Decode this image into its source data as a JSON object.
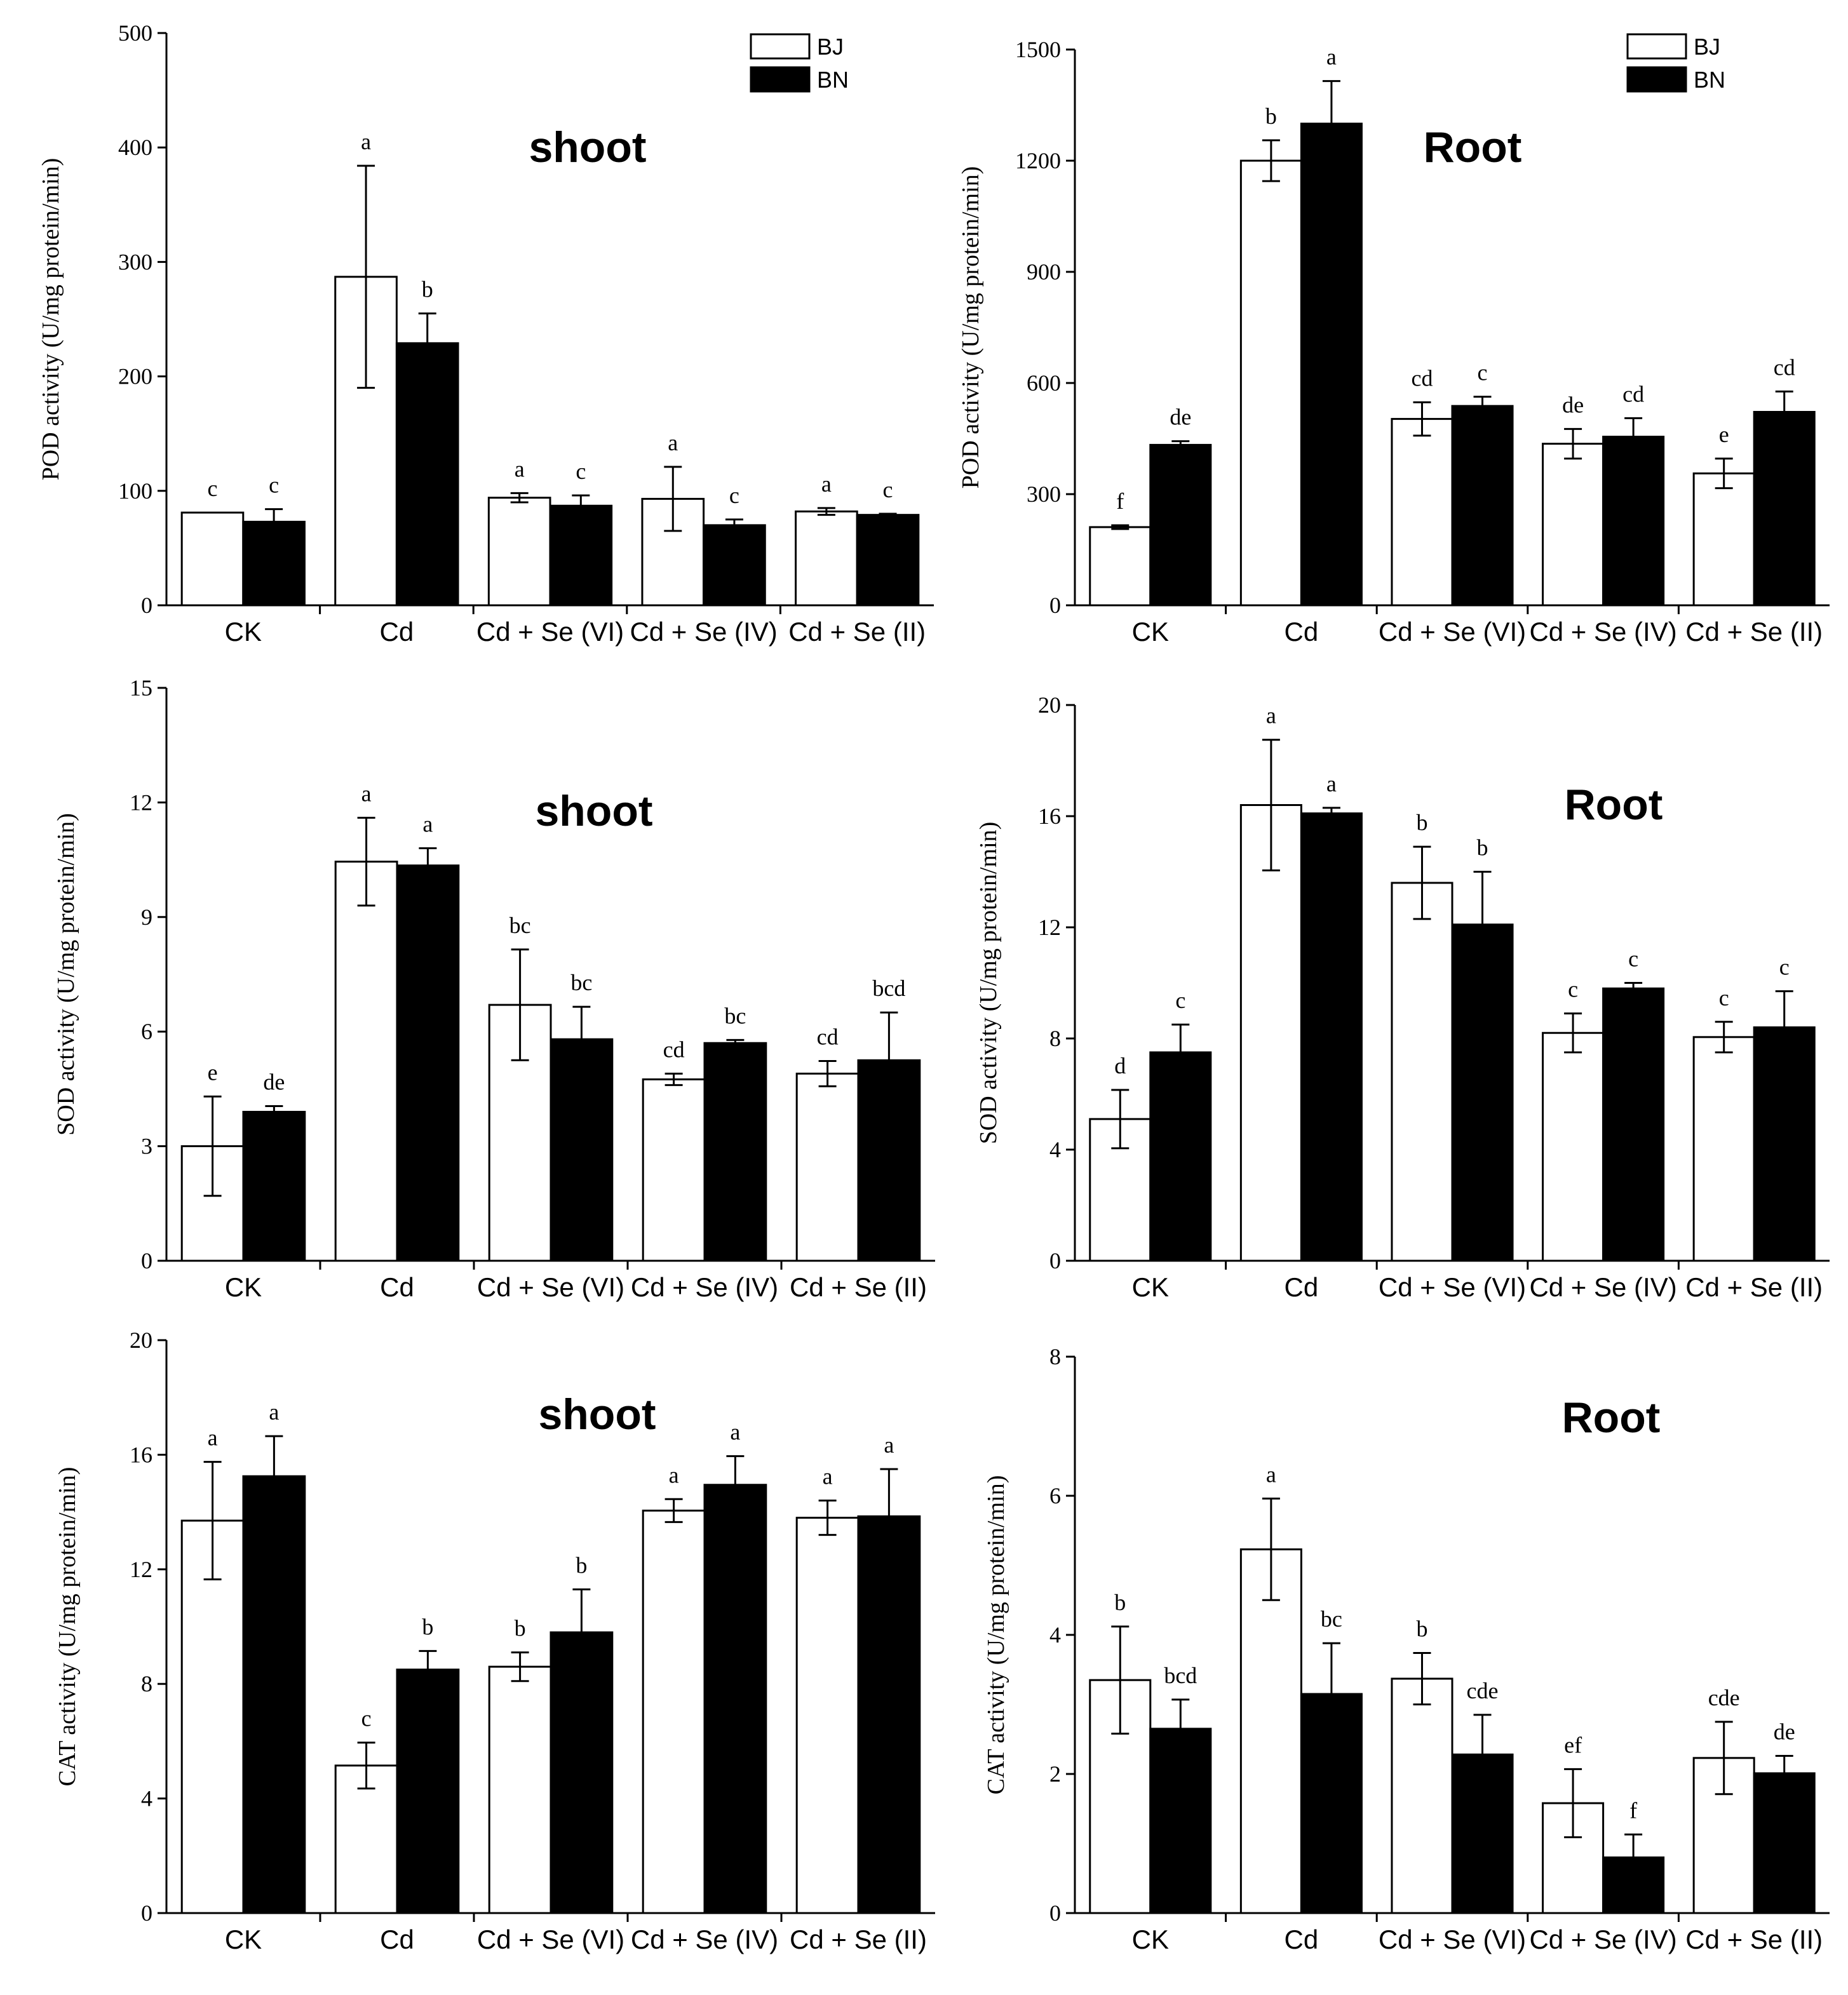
{
  "chart_data": [
    {
      "type": "bar",
      "title": "shoot",
      "ylabel": "POD activity (U/mg protein/min)",
      "ylim": [
        0,
        500
      ],
      "yticks": [
        0,
        100,
        200,
        300,
        400,
        500
      ],
      "categories": [
        "CK",
        "Cd",
        "Cd + Se (VI)",
        "Cd + Se (IV)",
        "Cd + Se (II)"
      ],
      "legend": {
        "position": "top-right",
        "entries": [
          "BJ",
          "BN"
        ]
      },
      "series": [
        {
          "name": "BJ",
          "color": "#ffffff",
          "values": [
            81,
            287,
            94,
            93,
            82
          ],
          "errors": [
            0,
            97,
            4,
            28,
            3
          ],
          "labels": [
            "c",
            "a",
            "a",
            "a",
            "a"
          ]
        },
        {
          "name": "BN",
          "color": "#000000",
          "values": [
            73,
            229,
            87,
            70,
            79
          ],
          "errors": [
            11,
            26,
            9,
            5,
            1
          ],
          "labels": [
            "c",
            "b",
            "c",
            "c",
            "c"
          ]
        }
      ]
    },
    {
      "type": "bar",
      "title": "Root",
      "ylabel": "POD activity (U/mg protein/min)",
      "ylim": [
        0,
        1500
      ],
      "yticks": [
        0,
        300,
        600,
        900,
        1200,
        1500
      ],
      "categories": [
        "CK",
        "Cd",
        "Cd + Se (VI)",
        "Cd + Se (IV)",
        "Cd + Se (II)"
      ],
      "legend": {
        "position": "top-right",
        "entries": [
          "BJ",
          "BN"
        ]
      },
      "series": [
        {
          "name": "BJ",
          "color": "#ffffff",
          "values": [
            211,
            1200,
            503,
            436,
            356
          ],
          "errors": [
            5,
            55,
            45,
            40,
            40
          ],
          "labels": [
            "f",
            "b",
            "cd",
            "de",
            "e"
          ]
        },
        {
          "name": "BN",
          "color": "#000000",
          "values": [
            433,
            1300,
            538,
            455,
            522
          ],
          "errors": [
            10,
            115,
            25,
            50,
            55
          ],
          "labels": [
            "de",
            "a",
            "c",
            "cd",
            "cd"
          ]
        }
      ]
    },
    {
      "type": "bar",
      "title": "shoot",
      "ylabel": "SOD activity (U/mg protein/min)",
      "ylim": [
        0,
        15
      ],
      "yticks": [
        0,
        3,
        6,
        9,
        12,
        15
      ],
      "categories": [
        "CK",
        "Cd",
        "Cd + Se (VI)",
        "Cd + Se (IV)",
        "Cd + Se (II)"
      ],
      "series": [
        {
          "name": "BJ",
          "color": "#ffffff",
          "values": [
            3.0,
            10.45,
            6.7,
            4.75,
            4.9
          ],
          "errors": [
            1.3,
            1.15,
            1.45,
            0.15,
            0.33
          ],
          "labels": [
            "e",
            "a",
            "bc",
            "cd",
            "cd"
          ]
        },
        {
          "name": "BN",
          "color": "#000000",
          "values": [
            3.9,
            10.35,
            5.8,
            5.7,
            5.25
          ],
          "errors": [
            0.15,
            0.45,
            0.85,
            0.08,
            1.25
          ],
          "labels": [
            "de",
            "a",
            "bc",
            "bc",
            "bcd"
          ]
        }
      ]
    },
    {
      "type": "bar",
      "title": "Root",
      "ylabel": "SOD activity (U/mg protein/min)",
      "ylim": [
        0,
        20
      ],
      "yticks": [
        0,
        4,
        8,
        12,
        16,
        20
      ],
      "categories": [
        "CK",
        "Cd",
        "Cd + Se (VI)",
        "Cd + Se (IV)",
        "Cd + Se (II)"
      ],
      "series": [
        {
          "name": "BJ",
          "color": "#ffffff",
          "values": [
            5.1,
            16.4,
            13.6,
            8.2,
            8.05
          ],
          "errors": [
            1.05,
            2.35,
            1.3,
            0.7,
            0.55
          ],
          "labels": [
            "d",
            "a",
            "b",
            "c",
            "c"
          ]
        },
        {
          "name": "BN",
          "color": "#000000",
          "values": [
            7.5,
            16.1,
            12.1,
            9.8,
            8.4
          ],
          "errors": [
            1.0,
            0.2,
            1.9,
            0.2,
            1.3
          ],
          "labels": [
            "c",
            "a",
            "b",
            "c",
            "c"
          ]
        }
      ]
    },
    {
      "type": "bar",
      "title": "shoot",
      "ylabel": "CAT activity (U/mg protein/min)",
      "ylim": [
        0,
        20
      ],
      "yticks": [
        0,
        4,
        8,
        12,
        16,
        20
      ],
      "categories": [
        "CK",
        "Cd",
        "Cd + Se (VI)",
        "Cd + Se (IV)",
        "Cd + Se (II)"
      ],
      "series": [
        {
          "name": "BJ",
          "color": "#ffffff",
          "values": [
            13.7,
            5.15,
            8.6,
            14.05,
            13.8
          ],
          "errors": [
            2.05,
            0.8,
            0.5,
            0.4,
            0.6
          ],
          "labels": [
            "a",
            "c",
            "b",
            "a",
            "a"
          ]
        },
        {
          "name": "BN",
          "color": "#000000",
          "values": [
            15.25,
            8.5,
            9.8,
            14.95,
            13.85
          ],
          "errors": [
            1.4,
            0.65,
            1.5,
            1.0,
            1.65
          ],
          "labels": [
            "a",
            "b",
            "b",
            "a",
            "a"
          ]
        }
      ]
    },
    {
      "type": "bar",
      "title": "Root",
      "ylabel": "CAT activity (U/mg protein/min)",
      "ylim": [
        0,
        8
      ],
      "yticks": [
        0,
        2,
        4,
        6,
        8
      ],
      "categories": [
        "CK",
        "Cd",
        "Cd + Se (VI)",
        "Cd + Se (IV)",
        "Cd + Se (II)"
      ],
      "series": [
        {
          "name": "BJ",
          "color": "#ffffff",
          "values": [
            3.35,
            5.23,
            3.37,
            1.58,
            2.23
          ],
          "errors": [
            0.77,
            0.73,
            0.37,
            0.49,
            0.52
          ],
          "labels": [
            "b",
            "a",
            "b",
            "ef",
            "cde"
          ]
        },
        {
          "name": "BN",
          "color": "#000000",
          "values": [
            2.65,
            3.15,
            2.28,
            0.8,
            2.01
          ],
          "errors": [
            0.42,
            0.73,
            0.57,
            0.33,
            0.25
          ],
          "labels": [
            "bcd",
            "bc",
            "cde",
            "f",
            "de"
          ]
        }
      ]
    }
  ]
}
